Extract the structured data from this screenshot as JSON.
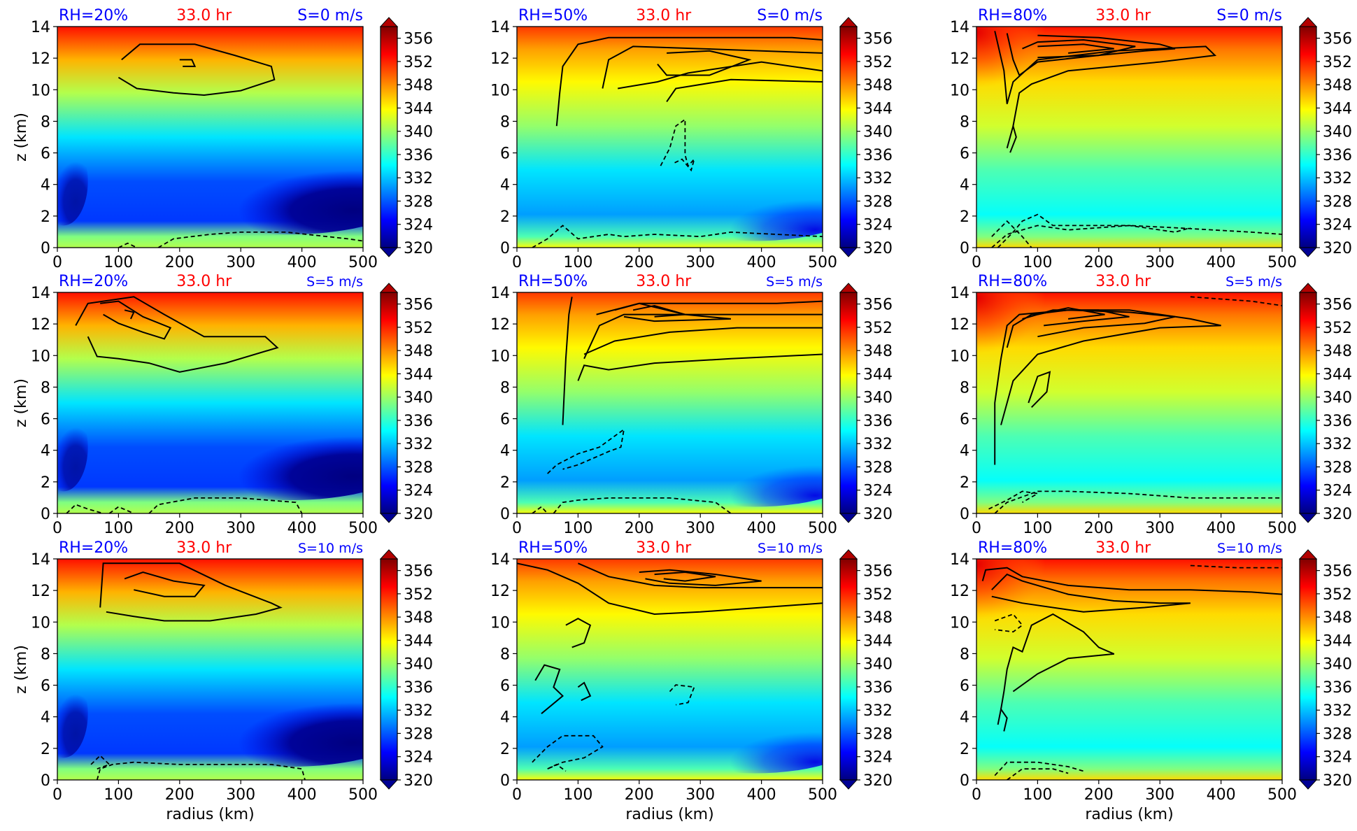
{
  "figure": {
    "time_label": "33.0 hr",
    "xlabel": "radius (km)",
    "ylabel": "z (km)",
    "colorbar_ticks": [
      "320",
      "324",
      "328",
      "332",
      "336",
      "340",
      "344",
      "348",
      "352",
      "356"
    ]
  },
  "chart_data": [
    {
      "type": "heatmap",
      "rh": "RH=20%",
      "time": "33.0 hr",
      "shear": "S=0 m/s",
      "xlabel": "",
      "ylabel": "z (km)",
      "xlim": [
        0,
        500
      ],
      "ylim": [
        0,
        14
      ],
      "clim": [
        320,
        358
      ]
    },
    {
      "type": "heatmap",
      "rh": "RH=50%",
      "time": "33.0 hr",
      "shear": "S=0 m/s",
      "xlabel": "",
      "ylabel": "",
      "xlim": [
        0,
        500
      ],
      "ylim": [
        0,
        14
      ],
      "clim": [
        320,
        358
      ]
    },
    {
      "type": "heatmap",
      "rh": "RH=80%",
      "time": "33.0 hr",
      "shear": "S=0 m/s",
      "xlabel": "",
      "ylabel": "",
      "xlim": [
        0,
        500
      ],
      "ylim": [
        0,
        14
      ],
      "clim": [
        320,
        358
      ]
    },
    {
      "type": "heatmap",
      "rh": "RH=20%",
      "time": "33.0 hr",
      "shear": "S=5 m/s",
      "xlabel": "",
      "ylabel": "z (km)",
      "xlim": [
        0,
        500
      ],
      "ylim": [
        0,
        14
      ],
      "clim": [
        320,
        358
      ]
    },
    {
      "type": "heatmap",
      "rh": "RH=50%",
      "time": "33.0 hr",
      "shear": "S=5 m/s",
      "xlabel": "",
      "ylabel": "",
      "xlim": [
        0,
        500
      ],
      "ylim": [
        0,
        14
      ],
      "clim": [
        320,
        358
      ]
    },
    {
      "type": "heatmap",
      "rh": "RH=80%",
      "time": "33.0 hr",
      "shear": "S=5 m/s",
      "xlabel": "",
      "ylabel": "",
      "xlim": [
        0,
        500
      ],
      "ylim": [
        0,
        14
      ],
      "clim": [
        320,
        358
      ]
    },
    {
      "type": "heatmap",
      "rh": "RH=20%",
      "time": "33.0 hr",
      "shear": "S=10 m/s",
      "xlabel": "radius (km)",
      "ylabel": "z (km)",
      "xlim": [
        0,
        500
      ],
      "ylim": [
        0,
        14
      ],
      "clim": [
        320,
        358
      ]
    },
    {
      "type": "heatmap",
      "rh": "RH=50%",
      "time": "33.0 hr",
      "shear": "S=10 m/s",
      "xlabel": "radius (km)",
      "ylabel": "",
      "xlim": [
        0,
        500
      ],
      "ylim": [
        0,
        14
      ],
      "clim": [
        320,
        358
      ]
    },
    {
      "type": "heatmap",
      "rh": "RH=80%",
      "time": "33.0 hr",
      "shear": "S=10 m/s",
      "xlabel": "radius (km)",
      "ylabel": "",
      "xlim": [
        0,
        500
      ],
      "ylim": [
        0,
        14
      ],
      "clim": [
        320,
        358
      ]
    }
  ],
  "colors": {
    "title_blue": "#0000ff",
    "title_red": "#ff0000"
  }
}
